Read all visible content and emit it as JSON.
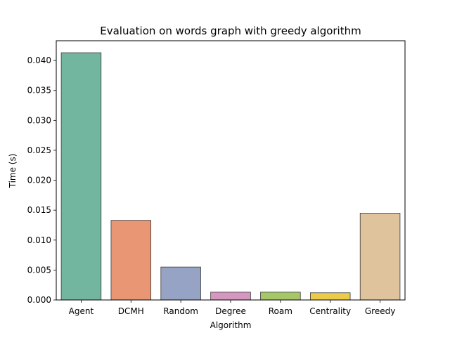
{
  "chart_data": {
    "type": "bar",
    "title": "Evaluation on words graph with greedy algorithm",
    "xlabel": "Algorithm",
    "ylabel": "Time (s)",
    "categories": [
      "Agent",
      "DCMH",
      "Random",
      "Degree",
      "Roam",
      "Centrality",
      "Greedy"
    ],
    "values": [
      0.0413,
      0.0133,
      0.0055,
      0.0013,
      0.0013,
      0.0012,
      0.0145
    ],
    "colors": [
      "#73b6a0",
      "#e99675",
      "#96a3c5",
      "#d596c0",
      "#a5c768",
      "#ebcb47",
      "#dec39c"
    ],
    "ylim": [
      0,
      0.0433
    ],
    "yticks": [
      0,
      0.005,
      0.01,
      0.015,
      0.02,
      0.025,
      0.03,
      0.035,
      0.04
    ],
    "ytick_labels": [
      "0.000",
      "0.005",
      "0.010",
      "0.015",
      "0.020",
      "0.025",
      "0.030",
      "0.035",
      "0.040"
    ],
    "grid": false,
    "legend": "none"
  }
}
